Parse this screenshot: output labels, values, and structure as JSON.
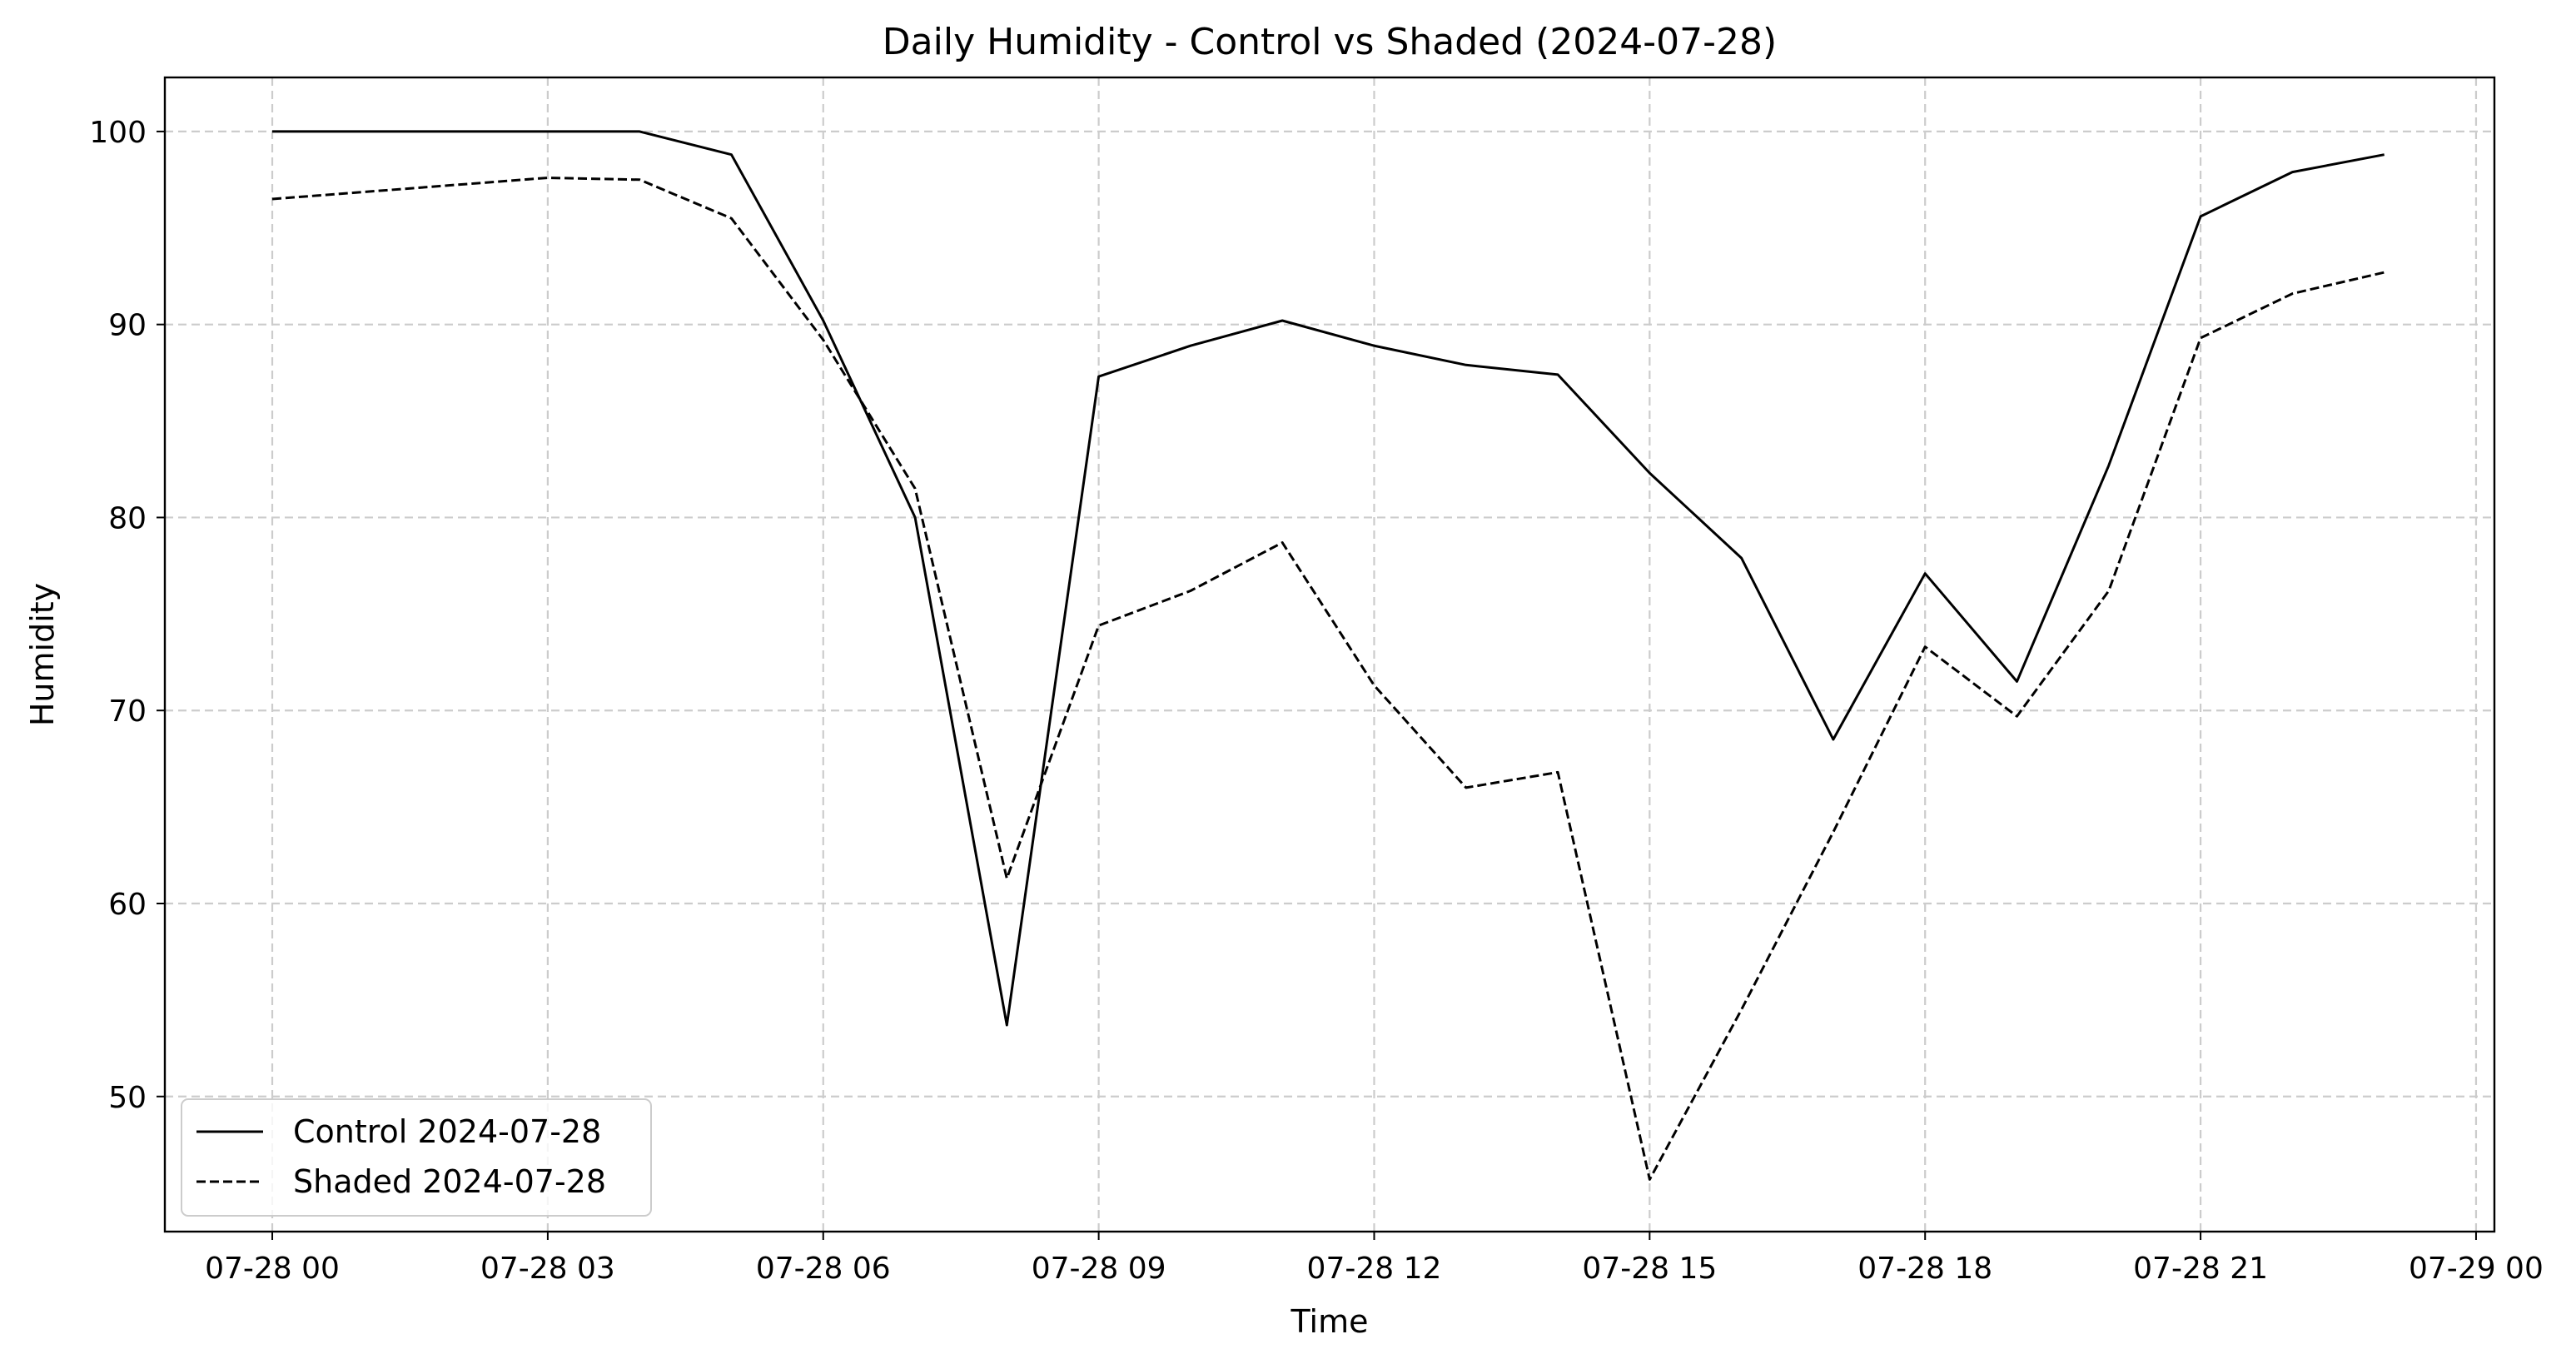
{
  "chart_data": {
    "type": "line",
    "title": "Daily Humidity - Control vs Shaded (2024-07-28)",
    "xlabel": "Time",
    "ylabel": "Humidity",
    "x": [
      "07-28 00:00",
      "07-28 03:00",
      "07-28 04:00",
      "07-28 05:00",
      "07-28 06:00",
      "07-28 07:00",
      "07-28 08:00",
      "07-28 09:00",
      "07-28 10:00",
      "07-28 11:00",
      "07-28 12:00",
      "07-28 13:00",
      "07-28 14:00",
      "07-28 15:00",
      "07-28 16:00",
      "07-28 17:00",
      "07-28 18:00",
      "07-28 19:00",
      "07-28 20:00",
      "07-28 21:00",
      "07-28 22:00",
      "07-28 23:00"
    ],
    "x_hours": [
      0,
      3,
      4,
      5,
      6,
      7,
      8,
      9,
      10,
      11,
      12,
      13,
      14,
      15,
      16,
      17,
      18,
      19,
      20,
      21,
      22,
      23
    ],
    "series": [
      {
        "name": "Control 2024-07-28",
        "style": "solid",
        "values": [
          100,
          100,
          100,
          98.8,
          90.2,
          80.0,
          53.7,
          87.3,
          88.9,
          90.2,
          88.9,
          87.9,
          87.4,
          82.3,
          77.9,
          68.5,
          77.1,
          71.5,
          82.7,
          95.6,
          97.9,
          98.8
        ]
      },
      {
        "name": "Shaded 2024-07-28",
        "style": "dashed",
        "values": [
          96.5,
          97.6,
          97.5,
          95.5,
          89.2,
          81.5,
          61.3,
          74.4,
          76.2,
          78.7,
          71.3,
          66.0,
          66.8,
          45.7,
          54.5,
          63.7,
          73.3,
          69.7,
          76.2,
          89.3,
          91.6,
          92.7
        ]
      }
    ],
    "x_ticks": [
      "07-28 00",
      "07-28 03",
      "07-28 06",
      "07-28 09",
      "07-28 12",
      "07-28 15",
      "07-28 18",
      "07-28 21",
      "07-29 00"
    ],
    "x_tick_hours": [
      0,
      3,
      6,
      9,
      12,
      15,
      18,
      21,
      24
    ],
    "y_ticks": [
      50,
      60,
      70,
      80,
      90,
      100
    ],
    "xlim_hours": [
      -1.17,
      24.2
    ],
    "ylim": [
      43.0,
      102.8
    ],
    "grid": true,
    "legend_position": "lower-left",
    "colors": {
      "line": "#000000",
      "grid": "#cccccc",
      "background": "#ffffff"
    }
  }
}
